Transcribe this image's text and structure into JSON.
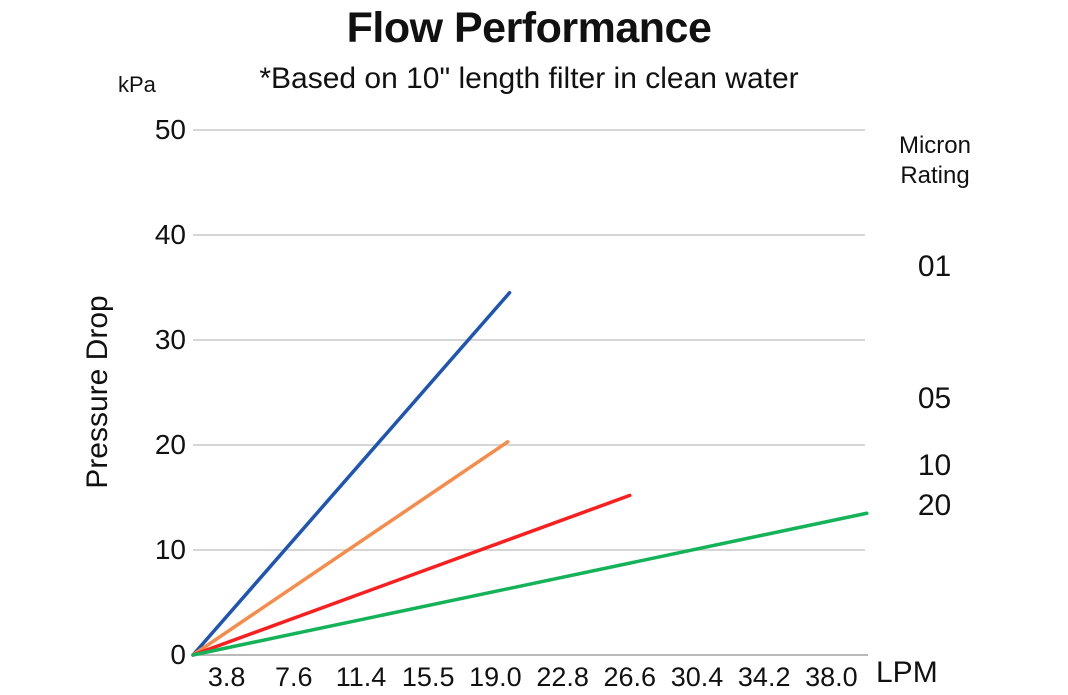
{
  "header": {
    "title": "Flow Performance",
    "subtitle": "*Based on 10\" length filter in clean water"
  },
  "axes": {
    "y_unit": "kPa",
    "y_title": "Pressure Drop",
    "x_unit": "LPM"
  },
  "legend": {
    "title": "Micron Rating",
    "items": [
      "01",
      "05",
      "10",
      "20"
    ]
  },
  "colors": {
    "gridline": "#c9c9c9",
    "axis_line": "#a3a3a3",
    "text": "#111111"
  },
  "chart_data": {
    "type": "line",
    "title": "Flow Performance",
    "subtitle": "*Based on 10\" length filter in clean water",
    "xlabel": "LPM",
    "ylabel": "Pressure Drop (kPa)",
    "x_axis_type": "category",
    "x_ticks": [
      "3.8",
      "7.6",
      "11.4",
      "15.5",
      "19.0",
      "22.8",
      "26.6",
      "30.4",
      "34.2",
      "38.0"
    ],
    "x_tick_step": 3.8,
    "y_ticks": [
      0,
      10,
      20,
      30,
      40,
      50
    ],
    "ylim": [
      0,
      50
    ],
    "grid": "horizontal-only",
    "legend_title": "Micron Rating",
    "legend_position": "right",
    "series": [
      {
        "name": "01",
        "color": "#1e55b2",
        "points": [
          [
            0,
            0
          ],
          [
            19.8,
            34.5
          ]
        ]
      },
      {
        "name": "05",
        "color": "#f78b4a",
        "points": [
          [
            0,
            0
          ],
          [
            19.7,
            20.3
          ]
        ]
      },
      {
        "name": "10",
        "color": "#fa1f1f",
        "points": [
          [
            0,
            0
          ],
          [
            26.6,
            15.2
          ]
        ]
      },
      {
        "name": "20",
        "color": "#14b259",
        "points": [
          [
            0,
            0
          ],
          [
            40.0,
            13.5
          ]
        ]
      }
    ]
  }
}
